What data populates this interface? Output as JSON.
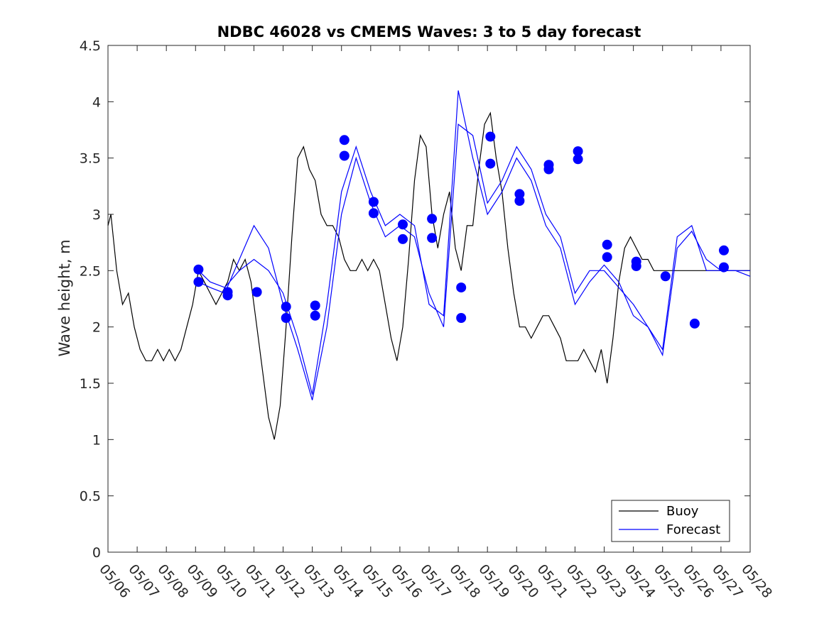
{
  "chart_data": {
    "type": "line",
    "title": "NDBC 46028 vs CMEMS Waves: 3 to 5 day forecast",
    "xlabel": "",
    "ylabel": "Wave height, m",
    "xlim": [
      "05/06",
      "05/28"
    ],
    "ylim": [
      0,
      4.5
    ],
    "x_ticks": [
      "05/06",
      "05/07",
      "05/08",
      "05/09",
      "05/10",
      "05/11",
      "05/12",
      "05/13",
      "05/14",
      "05/15",
      "05/16",
      "05/17",
      "05/18",
      "05/19",
      "05/20",
      "05/21",
      "05/22",
      "05/23",
      "05/24",
      "05/25",
      "05/26",
      "05/27",
      "05/28"
    ],
    "y_ticks": [
      "0",
      "0.5",
      "1",
      "1.5",
      "2",
      "2.5",
      "3",
      "3.5",
      "4",
      "4.5"
    ],
    "grid": false,
    "legend_position": "bottom-right",
    "legend": [
      "Buoy",
      "Forecast"
    ],
    "colors": {
      "buoy": "#000000",
      "forecast": "#0000ff"
    },
    "buoy": {
      "name": "Buoy",
      "x": [
        0,
        0.1,
        0.3,
        0.5,
        0.7,
        0.9,
        1.1,
        1.3,
        1.5,
        1.7,
        1.9,
        2.1,
        2.3,
        2.5,
        2.7,
        2.9,
        3.1,
        3.3,
        3.5,
        3.7,
        3.9,
        4.1,
        4.3,
        4.5,
        4.7,
        4.9,
        5.1,
        5.3,
        5.5,
        5.7,
        5.9,
        6.1,
        6.3,
        6.5,
        6.7,
        6.9,
        7.1,
        7.3,
        7.5,
        7.7,
        7.9,
        8.1,
        8.3,
        8.5,
        8.7,
        8.9,
        9.1,
        9.3,
        9.5,
        9.7,
        9.9,
        10.1,
        10.3,
        10.5,
        10.7,
        10.9,
        11.1,
        11.3,
        11.5,
        11.7,
        11.9,
        12.1,
        12.3,
        12.5,
        12.7,
        12.9,
        13.1,
        13.3,
        13.5,
        13.7,
        13.9,
        14.1,
        14.3,
        14.5,
        14.7,
        14.9,
        15.1,
        15.3,
        15.5,
        15.7,
        15.9,
        16.1,
        16.3,
        16.5,
        16.7,
        16.9,
        17.1,
        17.3,
        17.5,
        17.7,
        17.9,
        18.1,
        18.3,
        18.5,
        18.7,
        18.9,
        19.1,
        19.3,
        19.5,
        19.7,
        19.9,
        20.1,
        20.3,
        20.5,
        20.7,
        20.9,
        21.1,
        21.3,
        21.5,
        21.7,
        21.9,
        22.0
      ],
      "y": [
        2.9,
        3.0,
        2.5,
        2.2,
        2.3,
        2.0,
        1.8,
        1.7,
        1.7,
        1.8,
        1.7,
        1.8,
        1.7,
        1.8,
        2.0,
        2.2,
        2.5,
        2.4,
        2.3,
        2.2,
        2.3,
        2.4,
        2.6,
        2.5,
        2.6,
        2.4,
        2.0,
        1.6,
        1.2,
        1.0,
        1.3,
        2.0,
        2.8,
        3.5,
        3.6,
        3.4,
        3.3,
        3.0,
        2.9,
        2.9,
        2.8,
        2.6,
        2.5,
        2.5,
        2.6,
        2.5,
        2.6,
        2.5,
        2.2,
        1.9,
        1.7,
        2.0,
        2.6,
        3.3,
        3.7,
        3.6,
        3.0,
        2.7,
        3.0,
        3.2,
        2.7,
        2.5,
        2.9,
        2.9,
        3.4,
        3.8,
        3.9,
        3.5,
        3.2,
        2.7,
        2.3,
        2.0,
        2.0,
        1.9,
        2.0,
        2.1,
        2.1,
        2.0,
        1.9,
        1.7,
        1.7,
        1.7,
        1.8,
        1.7,
        1.6,
        1.8,
        1.5,
        1.9,
        2.4,
        2.7,
        2.8,
        2.7,
        2.6,
        2.6,
        2.5,
        2.5,
        2.5,
        2.5,
        2.5,
        2.5,
        2.5,
        2.5,
        2.5,
        2.5,
        2.5,
        2.5,
        2.5,
        2.5,
        2.5,
        2.5,
        2.5,
        2.5
      ]
    },
    "forecast_series": [
      {
        "name": "Forecast",
        "x": [
          3.1,
          3.5,
          4.0,
          4.5,
          5.0,
          5.5,
          6.0,
          6.5,
          7.0,
          7.5,
          8.0,
          8.5,
          9.0,
          9.5,
          10.0,
          10.5,
          11.0,
          11.5,
          12.0,
          12.5,
          13.0,
          13.5,
          14.0,
          14.5,
          15.0,
          15.5,
          16.0,
          16.5,
          17.0,
          17.5,
          18.0,
          18.5,
          19.0,
          19.5,
          20.0,
          20.5,
          21.0,
          21.5,
          22.0
        ],
        "y": [
          2.5,
          2.4,
          2.35,
          2.5,
          2.6,
          2.5,
          2.3,
          1.9,
          1.4,
          2.2,
          3.2,
          3.6,
          3.2,
          2.9,
          3.0,
          2.9,
          2.2,
          2.1,
          4.1,
          3.5,
          3.0,
          3.2,
          3.5,
          3.3,
          2.9,
          2.7,
          2.2,
          2.4,
          2.55,
          2.4,
          2.1,
          2.0,
          1.8,
          2.8,
          2.9,
          2.5,
          2.5,
          2.5,
          2.45
        ]
      },
      {
        "name": "Forecast",
        "x": [
          3.1,
          3.5,
          4.0,
          4.5,
          5.0,
          5.5,
          6.0,
          6.5,
          7.0,
          7.5,
          8.0,
          8.5,
          9.0,
          9.5,
          10.0,
          10.5,
          11.0,
          11.5,
          12.0,
          12.5,
          13.0,
          13.5,
          14.0,
          14.5,
          15.0,
          15.5,
          16.0,
          16.5,
          17.0,
          17.5,
          18.0,
          18.5,
          19.0,
          19.5,
          20.0,
          20.5,
          21.0,
          21.5,
          22.0
        ],
        "y": [
          2.4,
          2.35,
          2.3,
          2.6,
          2.9,
          2.7,
          2.2,
          1.8,
          1.35,
          2.0,
          3.0,
          3.5,
          3.1,
          2.8,
          2.9,
          2.8,
          2.3,
          2.0,
          3.8,
          3.7,
          3.1,
          3.3,
          3.6,
          3.4,
          3.0,
          2.8,
          2.3,
          2.5,
          2.5,
          2.35,
          2.2,
          2.0,
          1.75,
          2.7,
          2.85,
          2.6,
          2.5,
          2.5,
          2.5
        ]
      }
    ],
    "forecast_markers": [
      {
        "x": 3.1,
        "y": 2.51
      },
      {
        "x": 3.1,
        "y": 2.4
      },
      {
        "x": 4.1,
        "y": 2.31
      },
      {
        "x": 4.1,
        "y": 2.28
      },
      {
        "x": 5.1,
        "y": 2.31
      },
      {
        "x": 6.1,
        "y": 2.18
      },
      {
        "x": 6.1,
        "y": 2.08
      },
      {
        "x": 7.1,
        "y": 2.19
      },
      {
        "x": 7.1,
        "y": 2.1
      },
      {
        "x": 8.1,
        "y": 3.66
      },
      {
        "x": 8.1,
        "y": 3.52
      },
      {
        "x": 9.1,
        "y": 3.11
      },
      {
        "x": 9.1,
        "y": 3.01
      },
      {
        "x": 10.1,
        "y": 2.91
      },
      {
        "x": 10.1,
        "y": 2.78
      },
      {
        "x": 11.1,
        "y": 2.96
      },
      {
        "x": 11.1,
        "y": 2.79
      },
      {
        "x": 12.1,
        "y": 2.35
      },
      {
        "x": 12.1,
        "y": 2.08
      },
      {
        "x": 13.1,
        "y": 3.69
      },
      {
        "x": 13.1,
        "y": 3.45
      },
      {
        "x": 14.1,
        "y": 3.18
      },
      {
        "x": 14.1,
        "y": 3.12
      },
      {
        "x": 15.1,
        "y": 3.44
      },
      {
        "x": 15.1,
        "y": 3.4
      },
      {
        "x": 16.1,
        "y": 3.56
      },
      {
        "x": 16.1,
        "y": 3.49
      },
      {
        "x": 17.1,
        "y": 2.73
      },
      {
        "x": 17.1,
        "y": 2.62
      },
      {
        "x": 18.1,
        "y": 2.58
      },
      {
        "x": 18.1,
        "y": 2.54
      },
      {
        "x": 19.1,
        "y": 2.45
      },
      {
        "x": 20.1,
        "y": 2.03
      },
      {
        "x": 21.1,
        "y": 2.68
      },
      {
        "x": 21.1,
        "y": 2.53
      }
    ]
  }
}
